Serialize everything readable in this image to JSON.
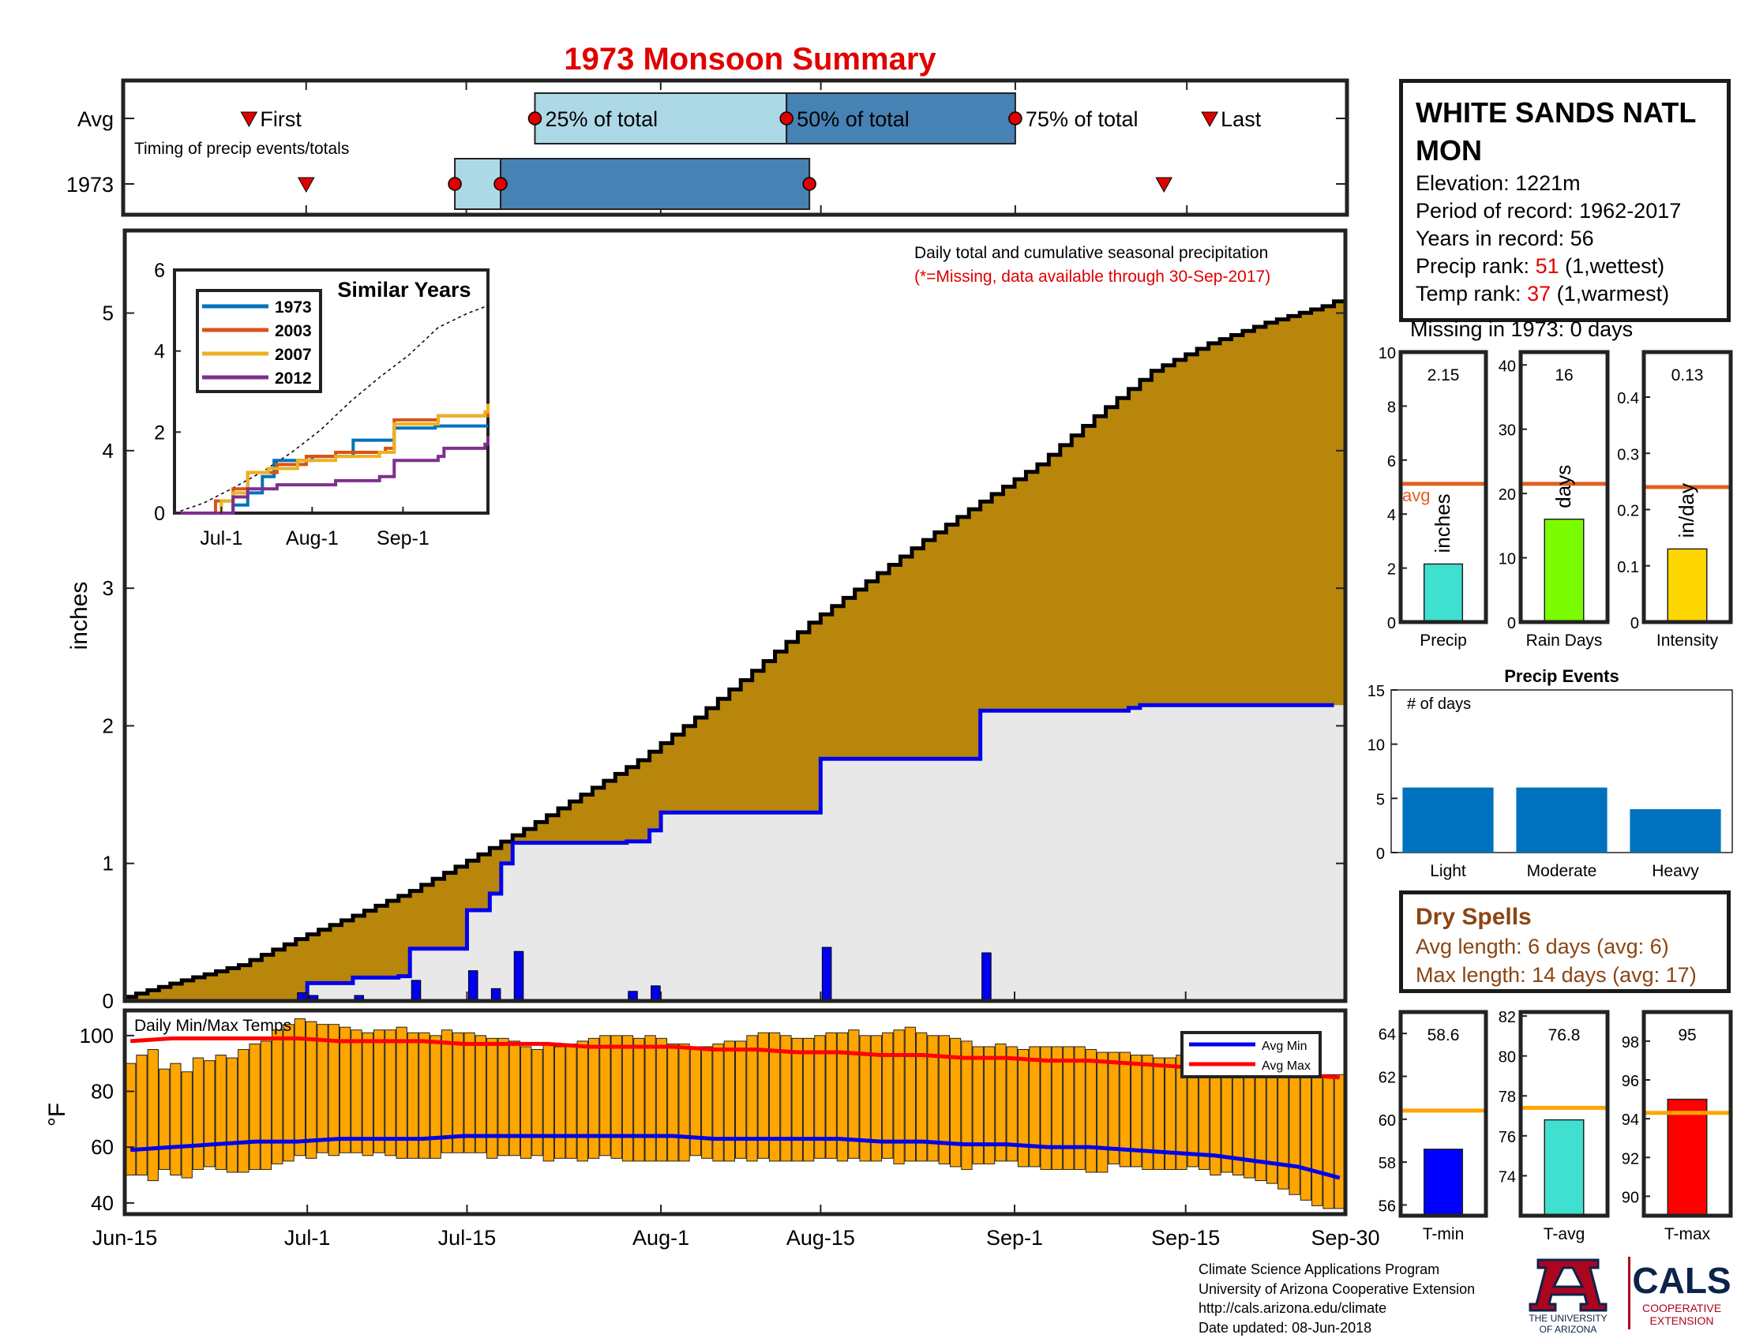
{
  "title": "1973 Monsoon Summary",
  "timing": {
    "rows": [
      "Avg",
      "1973"
    ],
    "subtitle": "Timing of precip events/totals",
    "labels": {
      "first": "First",
      "q25": "25% of total",
      "q50": "50% of total",
      "q75": "75% of total",
      "last": "Last"
    },
    "avg": {
      "first": 11,
      "q25": 36,
      "q50": 58,
      "q75": 78,
      "last": 95
    },
    "year": {
      "first": 16,
      "q25": 29,
      "q50": 33,
      "q75": 60,
      "last": 91
    }
  },
  "station": {
    "name": "WHITE SANDS NATL MON",
    "elevation_label": "Elevation:",
    "elevation": "1221m",
    "period_label": "Period of record:",
    "period": "1962-2017",
    "years_label": "Years in record:",
    "years": "56",
    "precip_rank_label": "Precip rank:",
    "precip_rank": "51",
    "precip_rank_note": "(1,wettest)",
    "temp_rank_label": "Temp rank:",
    "temp_rank": "37",
    "temp_rank_note": "(1,warmest)",
    "missing": "Missing in 1973: 0 days"
  },
  "dry_spells": {
    "title": "Dry Spells",
    "avg_length": "Avg length: 6 days (avg: 6)",
    "max_length": "Max length: 14 days (avg: 17)"
  },
  "footer": {
    "lines": [
      "Climate Science Applications Program",
      "University of Arizona Cooperative Extension",
      "http://cals.arizona.edu/climate",
      "Date updated: 08-Jun-2018"
    ]
  },
  "logos": {
    "ua_line1": "THE UNIVERSITY",
    "ua_line2": "OF ARIZONA",
    "cals": "CALS",
    "cals_sub1": "COOPERATIVE",
    "cals_sub2": "EXTENSION"
  },
  "colors": {
    "avg_fill": "#b8860b",
    "year_fill": "#e8e8e8",
    "year_line": "#0000ee",
    "daily_bar": "#0000ee",
    "temp_bar": "#ffa500",
    "avg_max": "#ff0000",
    "avg_min": "#0000ee",
    "avg_ref": "#e06020",
    "q_light": "#add8e6",
    "q_dark": "#4682b4",
    "marker": "#e00000"
  },
  "chart_data": [
    {
      "type": "area",
      "name": "main-precip",
      "annotation": "Daily total and cumulative seasonal precipitation",
      "annotation_note": "(*=Missing, data available through 30-Sep-2017)",
      "ylabel": "inches",
      "ylim": [
        0,
        5.6
      ],
      "yticks": [
        0,
        1,
        2,
        3,
        4,
        5
      ],
      "xlim": [
        0,
        107
      ],
      "xtick_days": [
        0,
        16,
        30,
        47,
        61,
        78,
        93,
        107
      ],
      "xtick_labels": [
        "Jun-15",
        "Jul-1",
        "Jul-15",
        "Aug-1",
        "Aug-15",
        "Sep-1",
        "Sep-15",
        "Sep-30"
      ],
      "avg_cumulative": {
        "day": [
          0,
          5,
          10,
          15,
          20,
          25,
          30,
          35,
          40,
          45,
          50,
          55,
          60,
          65,
          70,
          75,
          80,
          85,
          90,
          95,
          100,
          105,
          107
        ],
        "value": [
          0.03,
          0.15,
          0.26,
          0.45,
          0.62,
          0.8,
          1.02,
          1.25,
          1.5,
          1.75,
          2.06,
          2.4,
          2.75,
          3.05,
          3.35,
          3.63,
          3.9,
          4.25,
          4.58,
          4.78,
          4.93,
          5.05,
          5.12
        ]
      },
      "year_cumulative": {
        "day": [
          15,
          16,
          20,
          24,
          25,
          30,
          32,
          33,
          34,
          44,
          46,
          47,
          60,
          61,
          74,
          75,
          88,
          89,
          106
        ],
        "value": [
          0.0,
          0.13,
          0.17,
          0.18,
          0.38,
          0.66,
          0.78,
          1.0,
          1.15,
          1.16,
          1.24,
          1.37,
          1.37,
          1.76,
          1.76,
          2.11,
          2.13,
          2.15,
          2.15
        ]
      },
      "daily_precip": {
        "day": [
          15,
          16,
          20,
          24,
          25,
          30,
          32,
          34,
          44,
          46,
          61,
          75
        ],
        "value": [
          0.06,
          0.04,
          0.04,
          0.01,
          0.15,
          0.22,
          0.09,
          0.36,
          0.07,
          0.11,
          0.39,
          0.35
        ]
      }
    },
    {
      "type": "line",
      "name": "similar-years",
      "title": "Similar Years",
      "ylim": [
        0,
        6
      ],
      "yticks": [
        0,
        2,
        4,
        6
      ],
      "xtick_days": [
        16,
        47,
        78
      ],
      "xtick_labels": [
        "Jul-1",
        "Aug-1",
        "Sep-1"
      ],
      "series": [
        {
          "name": "1973",
          "color": "#0072bd",
          "day": [
            0,
            15,
            20,
            25,
            30,
            34,
            44,
            47,
            61,
            75,
            89,
            107
          ],
          "value": [
            0,
            0,
            0.2,
            0.5,
            0.9,
            1.3,
            1.3,
            1.4,
            1.8,
            2.1,
            2.15,
            2.15
          ]
        },
        {
          "name": "2003",
          "color": "#d95319",
          "day": [
            0,
            10,
            14,
            20,
            25,
            35,
            45,
            55,
            60,
            72,
            75,
            90,
            107
          ],
          "value": [
            0,
            0,
            0.3,
            0.6,
            1.0,
            1.2,
            1.4,
            1.5,
            1.5,
            1.6,
            2.3,
            2.4,
            2.5
          ]
        },
        {
          "name": "2007",
          "color": "#edb120",
          "day": [
            0,
            12,
            16,
            20,
            25,
            32,
            42,
            55,
            70,
            75,
            90,
            106,
            107
          ],
          "value": [
            0,
            0,
            0.3,
            0.5,
            1.0,
            1.1,
            1.3,
            1.4,
            1.5,
            2.2,
            2.4,
            2.5,
            2.7
          ]
        },
        {
          "name": "2012",
          "color": "#7e2f8e",
          "day": [
            0,
            15,
            20,
            25,
            35,
            55,
            60,
            70,
            75,
            90,
            92,
            106,
            107
          ],
          "value": [
            0,
            0,
            0.4,
            0.6,
            0.7,
            0.8,
            0.8,
            0.9,
            1.3,
            1.4,
            1.6,
            1.7,
            1.9
          ]
        }
      ],
      "avg_series": {
        "day": [
          0,
          10,
          20,
          30,
          40,
          50,
          60,
          70,
          80,
          90,
          100,
          107
        ],
        "value": [
          0,
          0.25,
          0.62,
          1.02,
          1.5,
          2.06,
          2.75,
          3.35,
          3.9,
          4.58,
          4.93,
          5.12
        ]
      }
    },
    {
      "type": "bar",
      "name": "temperature",
      "title": "Daily Min/Max Temps",
      "ylabel": "°F",
      "ylim": [
        36,
        109
      ],
      "yticks": [
        40,
        60,
        80,
        100
      ],
      "legend": [
        "Avg Min",
        "Avg Max"
      ],
      "legend_position": "top-right",
      "daily_min": [
        50,
        50,
        48,
        52,
        50,
        49,
        52,
        53,
        52,
        51,
        51,
        52,
        52,
        54,
        55,
        57,
        56,
        58,
        57,
        58,
        58,
        57,
        58,
        57,
        56,
        56,
        56,
        56,
        58,
        58,
        58,
        58,
        56,
        57,
        57,
        56,
        57,
        55,
        56,
        56,
        55,
        56,
        57,
        56,
        55,
        55,
        55,
        55,
        55,
        55,
        57,
        56,
        55,
        55,
        56,
        55,
        56,
        55,
        55,
        55,
        55,
        56,
        56,
        55,
        56,
        55,
        55,
        56,
        54,
        55,
        55,
        55,
        54,
        53,
        52,
        54,
        54,
        55,
        55,
        53,
        53,
        52,
        52,
        52,
        52,
        51,
        51,
        54,
        53,
        53,
        52,
        52,
        52,
        52,
        53,
        52,
        50,
        51,
        50,
        49,
        48,
        47,
        45,
        43,
        41,
        39,
        38,
        38
      ],
      "daily_max": [
        90,
        93,
        95,
        88,
        90,
        87,
        92,
        91,
        93,
        92,
        95,
        97,
        98,
        102,
        104,
        106,
        105,
        104,
        104,
        103,
        102,
        101,
        102,
        102,
        103,
        101,
        101,
        100,
        102,
        101,
        101,
        100,
        99,
        99,
        98,
        96,
        95,
        97,
        96,
        97,
        98,
        99,
        100,
        100,
        100,
        99,
        100,
        99,
        97,
        97,
        96,
        96,
        97,
        98,
        98,
        100,
        101,
        101,
        100,
        99,
        99,
        100,
        101,
        101,
        102,
        100,
        100,
        101,
        102,
        103,
        101,
        100,
        100,
        99,
        98,
        96,
        96,
        97,
        96,
        95,
        96,
        96,
        96,
        96,
        96,
        95,
        94,
        94,
        94,
        93,
        93,
        92,
        92,
        93,
        93,
        92,
        92,
        92,
        91,
        90,
        88,
        88,
        87,
        86,
        85,
        85,
        86,
        86
      ],
      "avg_max": [
        98,
        99,
        99,
        99,
        99,
        98,
        98,
        98,
        97,
        97,
        97,
        96,
        96,
        96,
        95,
        95,
        94,
        94,
        93,
        93,
        92,
        92,
        91,
        91,
        90,
        89,
        88,
        87,
        86,
        85
      ],
      "avg_min": [
        59,
        60,
        61,
        62,
        62,
        63,
        63,
        63,
        64,
        64,
        64,
        64,
        64,
        64,
        63,
        63,
        63,
        63,
        62,
        62,
        61,
        61,
        60,
        60,
        59,
        58,
        57,
        55,
        53,
        49
      ]
    },
    {
      "type": "bar",
      "name": "precip-total",
      "category": "Precip",
      "label": "inches",
      "value": 2.15,
      "value_label": "2.15",
      "avg": 5.12,
      "avg_label": "avg",
      "ylim": [
        0,
        10
      ],
      "yticks": [
        0,
        2,
        4,
        6,
        8,
        10
      ],
      "color": "#40e0d0"
    },
    {
      "type": "bar",
      "name": "rain-days",
      "category": "Rain Days",
      "label": "days",
      "value": 16,
      "value_label": "16",
      "avg": 21.5,
      "ylim": [
        0,
        42
      ],
      "yticks": [
        0,
        10,
        20,
        30,
        40
      ],
      "color": "#7cfc00"
    },
    {
      "type": "bar",
      "name": "intensity",
      "category": "Intensity",
      "label": "in/day",
      "value": 0.13,
      "value_label": "0.13",
      "avg": 0.24,
      "ylim": [
        0,
        0.48
      ],
      "yticks": [
        0,
        0.1,
        0.2,
        0.3,
        0.4
      ],
      "color": "#ffd700"
    },
    {
      "type": "bar",
      "name": "precip-events",
      "title": "Precip Events",
      "ylabel": "# of days",
      "categories": [
        "Light",
        "Moderate",
        "Heavy"
      ],
      "values": [
        6,
        6,
        4
      ],
      "ylim": [
        0,
        15
      ],
      "yticks": [
        0,
        5,
        10,
        15
      ],
      "color": "#0072bd"
    },
    {
      "type": "bar",
      "name": "t-min",
      "category": "T-min",
      "value": 58.6,
      "value_label": "58.6",
      "avg": 60.4,
      "ylim": [
        55.5,
        65
      ],
      "yticks": [
        56,
        58,
        60,
        62,
        64
      ],
      "color": "#0000ff"
    },
    {
      "type": "bar",
      "name": "t-avg",
      "category": "T-avg",
      "value": 76.8,
      "value_label": "76.8",
      "avg": 77.4,
      "ylim": [
        72,
        82.2
      ],
      "yticks": [
        74,
        76,
        78,
        80,
        82
      ],
      "color": "#40e0d0"
    },
    {
      "type": "bar",
      "name": "t-max",
      "category": "T-max",
      "value": 95,
      "value_label": "95",
      "avg": 94.3,
      "ylim": [
        89,
        99.5
      ],
      "yticks": [
        90,
        92,
        94,
        96,
        98
      ],
      "color": "#ff0000"
    }
  ]
}
